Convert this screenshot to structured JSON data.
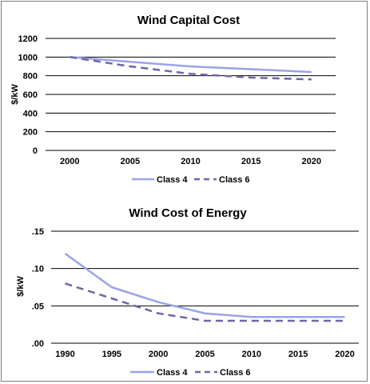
{
  "colors": {
    "class4": "#9aa3e6",
    "class6": "#6b68a8",
    "grid": "#000000"
  },
  "chart_data": [
    {
      "type": "line",
      "title": "Wind Capital Cost",
      "ylabel": "$/kW",
      "xlabel": "",
      "x": [
        2000,
        2005,
        2010,
        2015,
        2020
      ],
      "xlim": [
        1998,
        2022
      ],
      "ylim": [
        0,
        1200
      ],
      "yticks": [
        0,
        200,
        400,
        600,
        800,
        1000,
        1200
      ],
      "ytick_labels": [
        "0",
        "200",
        "400",
        "600",
        "800",
        "1000",
        "1200"
      ],
      "xtick_labels": [
        "2000",
        "2005",
        "2010",
        "2015",
        "2020"
      ],
      "grid": "horizontal",
      "legend_position": "bottom",
      "series": [
        {
          "name": "Class 4",
          "style": "solid",
          "x": [
            2000,
            2005,
            2010,
            2015,
            2020
          ],
          "values": [
            1000,
            950,
            900,
            870,
            840
          ]
        },
        {
          "name": "Class 6",
          "style": "dashed",
          "x": [
            2000,
            2005,
            2010,
            2015,
            2020
          ],
          "values": [
            1000,
            900,
            820,
            780,
            760
          ]
        }
      ]
    },
    {
      "type": "line",
      "title": "Wind Cost of Energy",
      "ylabel": "$/kW",
      "xlabel": "",
      "x": [
        1990,
        1995,
        2000,
        2005,
        2010,
        2015,
        2020
      ],
      "xlim": [
        1988.5,
        2021.5
      ],
      "ylim": [
        0,
        0.15
      ],
      "yticks": [
        0,
        0.05,
        0.1,
        0.15
      ],
      "ytick_labels": [
        ".00",
        ".05",
        ".10",
        ".15"
      ],
      "xtick_labels": [
        "1990",
        "1995",
        "2000",
        "2005",
        "2010",
        "2015",
        "2020"
      ],
      "grid": "horizontal",
      "legend_position": "bottom",
      "series": [
        {
          "name": "Class 4",
          "style": "solid",
          "x": [
            1990,
            1995,
            2000,
            2005,
            2010,
            2015,
            2020
          ],
          "values": [
            0.12,
            0.075,
            0.055,
            0.04,
            0.035,
            0.035,
            0.035
          ]
        },
        {
          "name": "Class 6",
          "style": "dashed",
          "x": [
            1990,
            1995,
            2000,
            2005,
            2010,
            2015,
            2020
          ],
          "values": [
            0.08,
            0.06,
            0.04,
            0.03,
            0.03,
            0.03,
            0.03
          ]
        }
      ]
    }
  ]
}
